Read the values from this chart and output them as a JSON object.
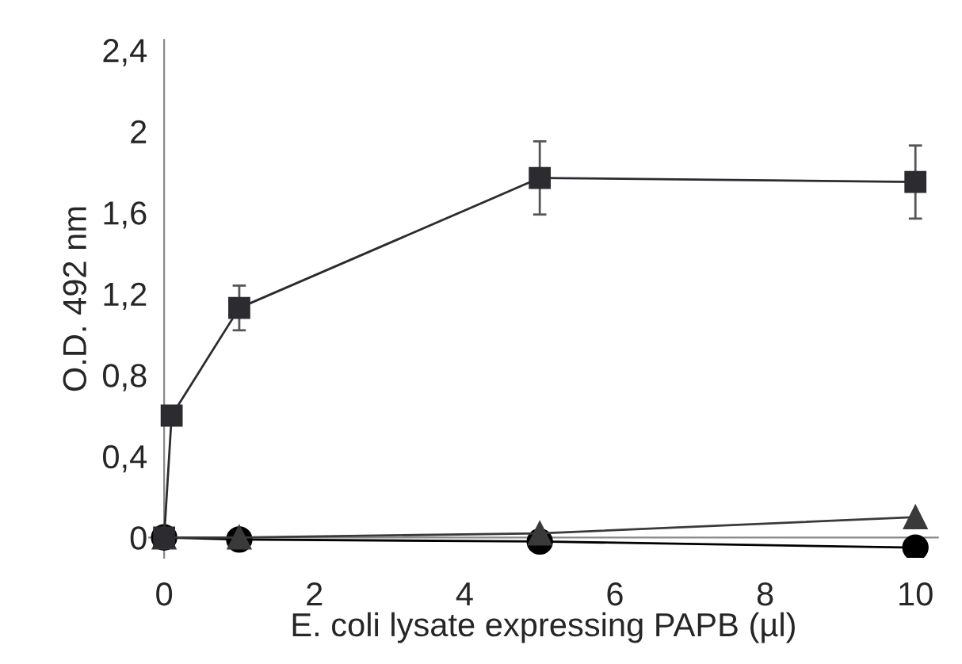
{
  "chart_data": {
    "type": "line",
    "xlabel": "E. coli lysate expressing PAPB (µl)",
    "ylabel": "O.D. 492 nm",
    "xlim": [
      -0.2,
      10.3
    ],
    "ylim": [
      -0.1,
      2.45
    ],
    "xticks": [
      0,
      2,
      4,
      6,
      8,
      10
    ],
    "yticks": [
      {
        "value": 0,
        "label": "0"
      },
      {
        "value": 0.4,
        "label": "0,4"
      },
      {
        "value": 0.8,
        "label": "0,8"
      },
      {
        "value": 1.2,
        "label": "1,2"
      },
      {
        "value": 1.6,
        "label": "1,6"
      },
      {
        "value": 2,
        "label": "2"
      },
      {
        "value": 2.4,
        "label": "2,4"
      }
    ],
    "grid": false,
    "legend": false,
    "series": [
      {
        "x": [
          0,
          0.1,
          1,
          5,
          10
        ],
        "values": [
          0,
          0.6,
          1.13,
          1.77,
          1.75
        ],
        "errors": [
          null,
          null,
          0.11,
          0.18,
          0.18
        ],
        "color": "#2b2b30",
        "marker": "square"
      },
      {
        "x": [
          0,
          1,
          5,
          10
        ],
        "values": [
          0,
          0,
          0.02,
          0.1
        ],
        "color": "#3a3a3a",
        "marker": "triangle"
      },
      {
        "x": [
          0,
          1,
          5,
          10
        ],
        "values": [
          0,
          -0.01,
          -0.02,
          -0.05
        ],
        "color": "#000000",
        "marker": "circle"
      }
    ]
  }
}
